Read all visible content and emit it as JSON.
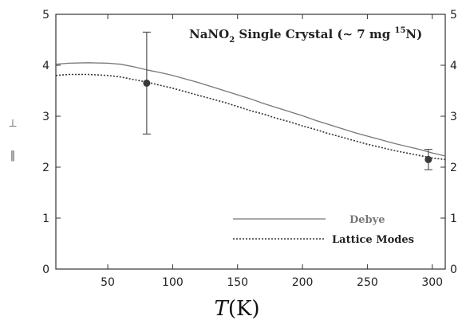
{
  "chart_data": {
    "type": "line",
    "title": {
      "prefix": "NaNO",
      "sub": "2",
      "middle": " Single Crystal (~ 7 mg ",
      "sup": "15",
      "suffix": "N)"
    },
    "xlabel": {
      "italic": "T",
      "rest": "(K)"
    },
    "ylabel": {
      "parallel_symbol": "‖",
      "perp_symbol": "⊥"
    },
    "xlim": [
      10,
      310
    ],
    "ylim": [
      0,
      5
    ],
    "xticks": [
      50,
      100,
      150,
      200,
      250,
      300
    ],
    "yticks": [
      0,
      1,
      2,
      3,
      4,
      5
    ],
    "legend_position": "bottom-right",
    "series": [
      {
        "name": "Debye",
        "style": "solid",
        "color": "#777777",
        "x": [
          10,
          20,
          35,
          50,
          60,
          70,
          80,
          90,
          100,
          110,
          120,
          130,
          140,
          150,
          160,
          170,
          180,
          190,
          200,
          210,
          220,
          230,
          240,
          250,
          260,
          270,
          280,
          290,
          300,
          310
        ],
        "y": [
          4.02,
          4.04,
          4.05,
          4.04,
          4.02,
          3.97,
          3.91,
          3.86,
          3.8,
          3.73,
          3.66,
          3.58,
          3.5,
          3.42,
          3.34,
          3.25,
          3.17,
          3.09,
          3.01,
          2.92,
          2.84,
          2.76,
          2.68,
          2.61,
          2.54,
          2.47,
          2.41,
          2.35,
          2.28,
          2.22
        ]
      },
      {
        "name": "Lattice Modes",
        "style": "dotted",
        "color": "#333333",
        "x": [
          10,
          20,
          35,
          50,
          60,
          70,
          80,
          90,
          100,
          110,
          120,
          130,
          140,
          150,
          160,
          170,
          180,
          190,
          200,
          210,
          220,
          230,
          240,
          250,
          260,
          270,
          280,
          290,
          300,
          310
        ],
        "y": [
          3.8,
          3.82,
          3.82,
          3.8,
          3.77,
          3.72,
          3.67,
          3.61,
          3.55,
          3.48,
          3.41,
          3.34,
          3.27,
          3.19,
          3.11,
          3.04,
          2.96,
          2.89,
          2.81,
          2.74,
          2.66,
          2.59,
          2.52,
          2.45,
          2.39,
          2.33,
          2.28,
          2.23,
          2.18,
          2.15
        ]
      }
    ],
    "points": [
      {
        "x": 80,
        "y": 3.65,
        "err_low": 2.65,
        "err_high": 4.65
      },
      {
        "x": 297,
        "y": 2.15,
        "err_low": 1.95,
        "err_high": 2.35
      }
    ]
  }
}
